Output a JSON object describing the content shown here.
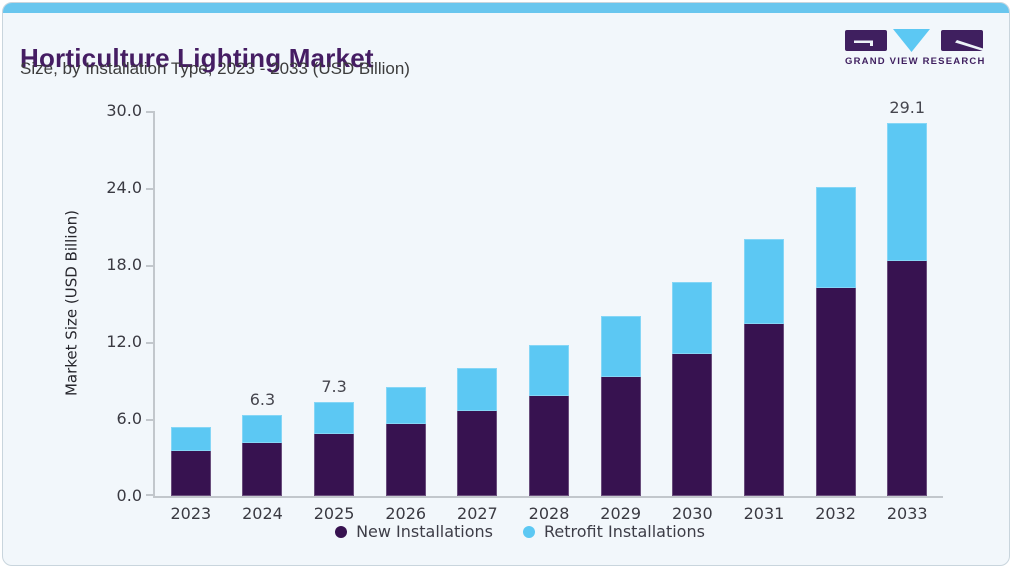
{
  "header": {
    "title": "Horticulture Lighting Market",
    "subtitle": "Size, by Installation Type, 2023 - 2033 (USD Billion)"
  },
  "logo": {
    "brand_text": "GRAND VIEW RESEARCH"
  },
  "colors": {
    "accent_bar": "#69C6EE",
    "card_bg": "#F2F7FB",
    "card_border": "#C9D5DD",
    "title": "#451D63",
    "subtitle_text": "#3C3C3C",
    "axis": "#C2C7CC",
    "tick_text": "#3A3A42",
    "bar_label_text": "#46464E",
    "legend_text": "#3D3D47",
    "logo_purple": "#3F1F5F",
    "logo_blue": "#5CC8F3",
    "series_new": "#371250",
    "series_retrofit": "#5CC8F3"
  },
  "chart_data": {
    "type": "bar",
    "stacked": true,
    "title": "Horticulture Lighting Market",
    "subtitle": "Size, by Installation Type, 2023 - 2033 (USD Billion)",
    "ylabel": "Market Size (USD Billion)",
    "xlabel": "",
    "ylim": [
      0,
      30
    ],
    "y_tick_labels": [
      "0.0",
      "6.0",
      "12.0",
      "18.0",
      "24.0",
      "30.0"
    ],
    "grid": false,
    "legend_position": "bottom",
    "categories": [
      "2023",
      "2024",
      "2025",
      "2026",
      "2027",
      "2028",
      "2029",
      "2030",
      "2031",
      "2032",
      "2033"
    ],
    "series": [
      {
        "name": "New Installations",
        "color": "#371250",
        "values": [
          3.5,
          4.1,
          4.8,
          5.6,
          6.6,
          7.8,
          9.3,
          11.1,
          13.4,
          16.2,
          18.3
        ]
      },
      {
        "name": "Retrofit Installations",
        "color": "#5CC8F3",
        "values": [
          1.9,
          2.2,
          2.5,
          2.9,
          3.4,
          4.0,
          4.7,
          5.6,
          6.6,
          7.9,
          10.8
        ]
      }
    ],
    "totals": [
      5.4,
      6.3,
      7.3,
      8.5,
      10.0,
      11.8,
      14.0,
      16.7,
      20.0,
      24.1,
      29.1
    ],
    "bar_labels": [
      "",
      "6.3",
      "7.3",
      "",
      "",
      "",
      "",
      "",
      "",
      "",
      "29.1"
    ]
  }
}
